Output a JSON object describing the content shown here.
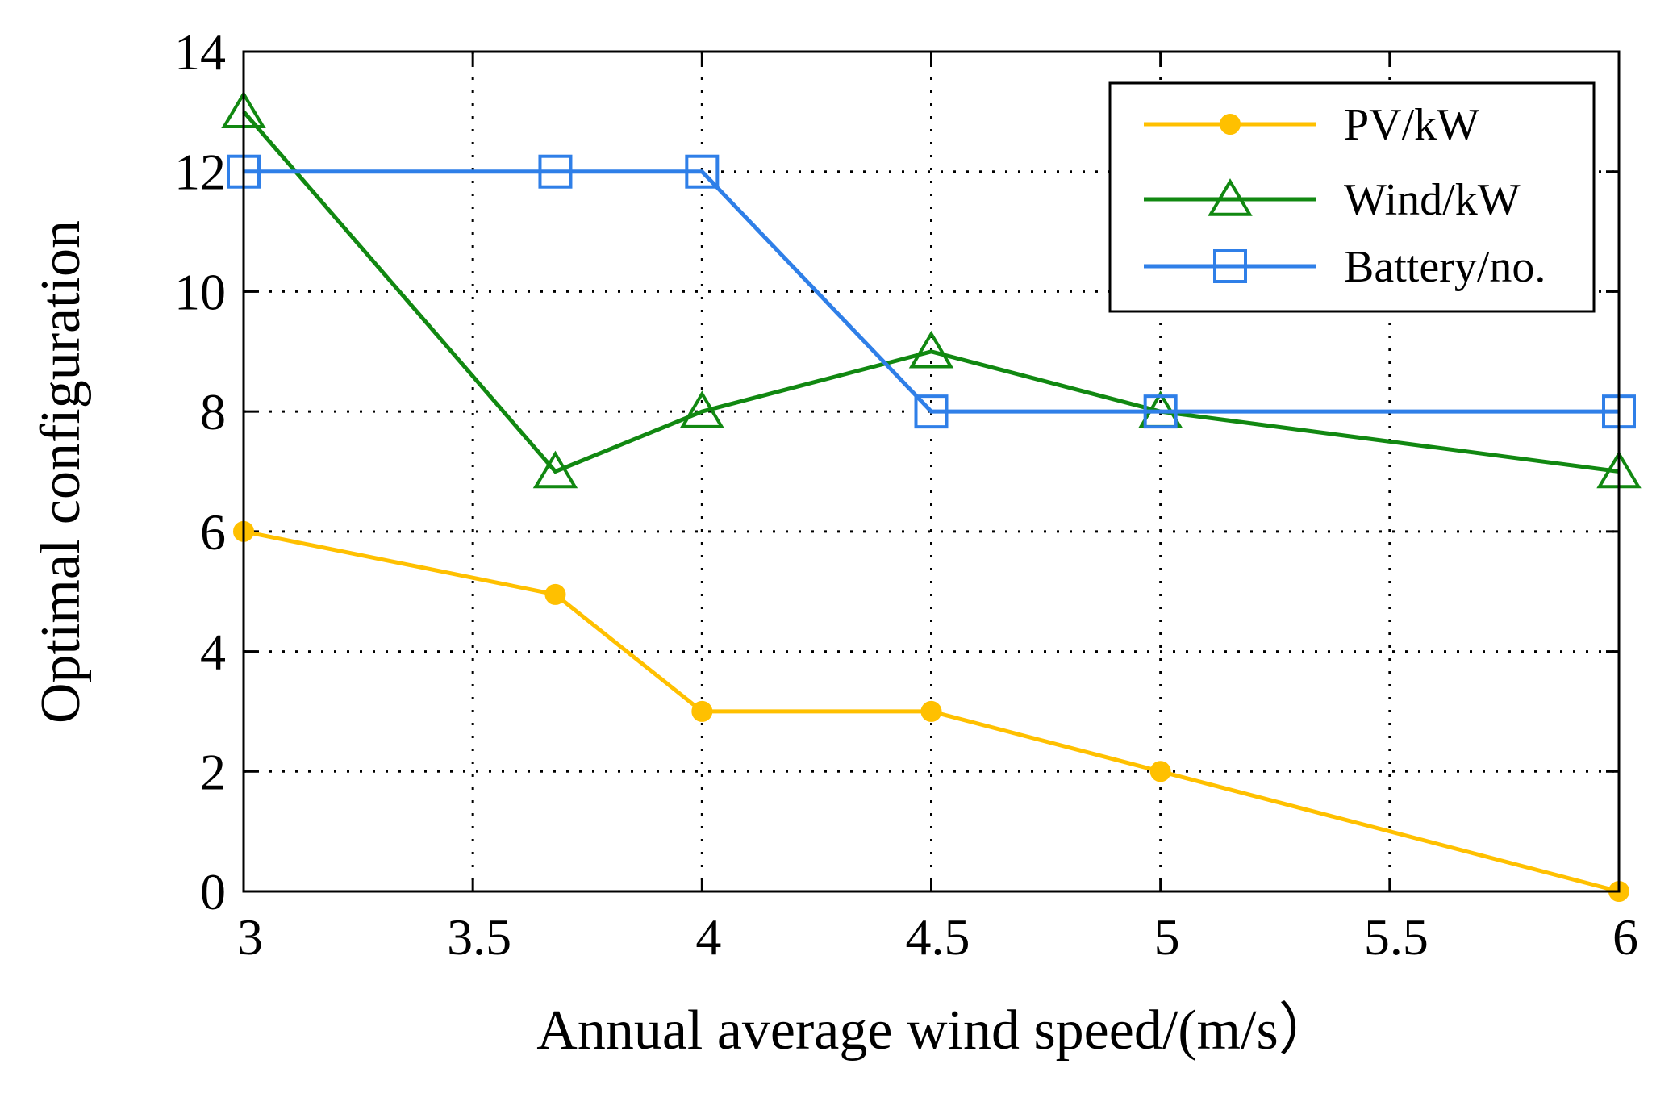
{
  "chart_data": {
    "type": "line",
    "title": "",
    "xlabel": "Annual average wind speed/(m/s）",
    "ylabel": "Optimal configuration",
    "xlim": [
      3,
      6
    ],
    "ylim": [
      0,
      14
    ],
    "xticks": [
      3,
      3.5,
      4,
      4.5,
      5,
      5.5,
      6
    ],
    "xtick_labels": [
      "3",
      "3.5",
      "4",
      "4.5",
      "5",
      "5.5",
      "6"
    ],
    "yticks": [
      0,
      2,
      4,
      6,
      8,
      10,
      12,
      14
    ],
    "ytick_labels": [
      "0",
      "2",
      "4",
      "6",
      "8",
      "10",
      "12",
      "14"
    ],
    "grid": true,
    "legend_position": "top-right",
    "series": [
      {
        "name": "PV/kW",
        "color": "#FFC000",
        "marker": "dot",
        "x": [
          3,
          3.68,
          4,
          4.5,
          5,
          6
        ],
        "y": [
          6,
          4.95,
          3,
          3,
          2,
          0
        ]
      },
      {
        "name": "Wind/kW",
        "color": "#118811",
        "marker": "triangle",
        "x": [
          3,
          3.68,
          4,
          4.5,
          5,
          6
        ],
        "y": [
          13,
          7,
          8,
          9,
          8,
          7
        ]
      },
      {
        "name": "Battery/no.",
        "color": "#2F7FE8",
        "marker": "square",
        "x": [
          3,
          3.68,
          4,
          4.5,
          5,
          6
        ],
        "y": [
          12,
          12,
          12,
          8,
          8,
          8
        ]
      }
    ]
  }
}
